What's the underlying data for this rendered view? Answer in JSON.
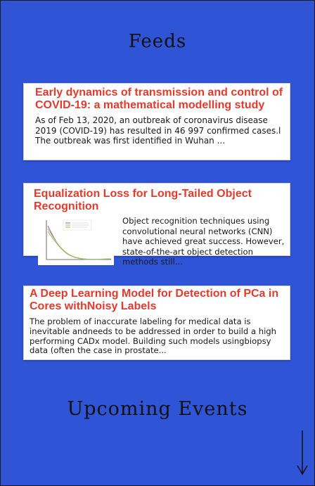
{
  "page": {
    "title": "Feeds",
    "upcoming_heading": "Upcoming Events"
  },
  "feeds": [
    {
      "title": "Early dynamics of transmission and control of COVID-19: a mathematical modelling study",
      "summary": "As of Feb 13, 2020, an outbreak of coronavirus disease 2019 (COVID-19) has resulted in 46 997 confirmed cases.l The outbreak was first identified in Wuhan ..."
    },
    {
      "title": "Equalization Loss for Long-Tailed Object Recognition",
      "summary": "Object recognition techniques using convolutional neural networks (CNN) have achieved great success. However, state-of-the-art object detection methods still...",
      "thumbnail": "line-chart-thumbnail"
    },
    {
      "title": "A Deep Learning Model for Detection of PCa in Cores withNoisy Labels",
      "summary": "The problem of inaccurate labeling for medical data is inevitable andneeds to be addressed in order to build a high performing CADx model. Building such models usingbiopsy data (often the case in prostate..."
    }
  ],
  "icons": {
    "scroll": "down-arrow-icon"
  },
  "colors": {
    "background": "#2f54d6",
    "card_title": "#e23b2e"
  }
}
